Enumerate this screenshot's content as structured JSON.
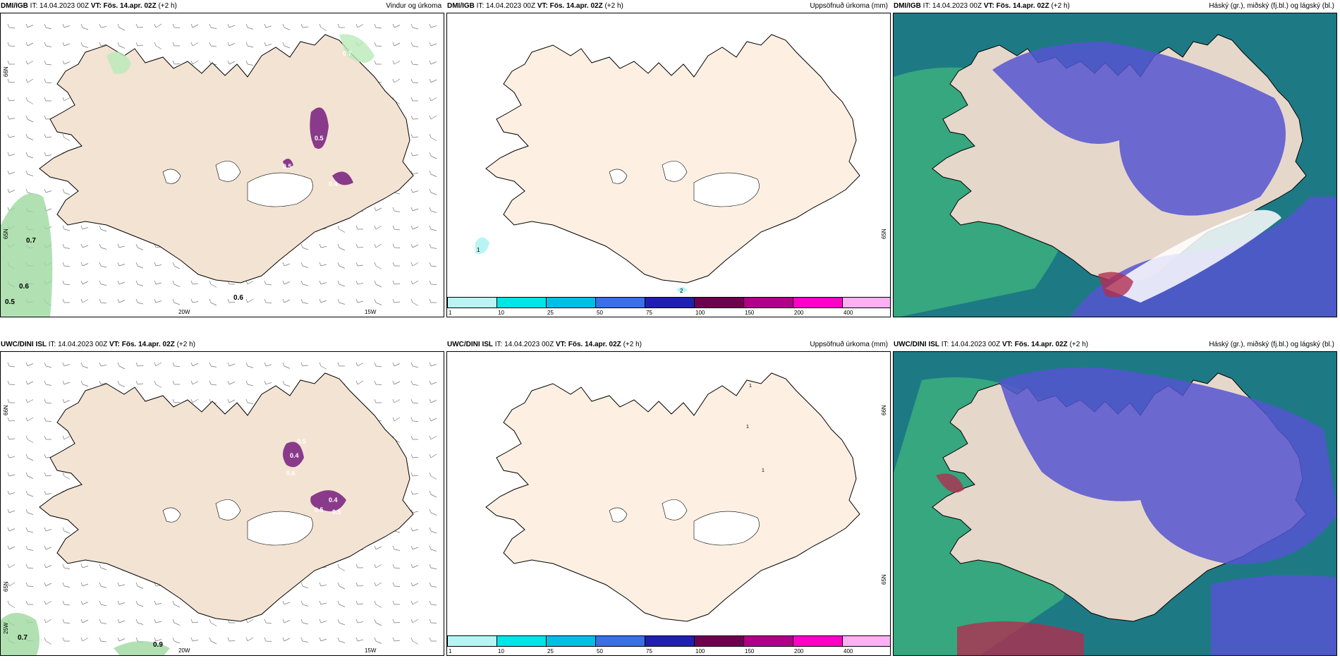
{
  "panels": [
    {
      "model": "DMI/IGB",
      "it_label": "IT:",
      "it": "14.04.2023 00Z",
      "vt_label": "VT:",
      "vt": "Fös. 14.apr. 02Z",
      "lead": "(+2 h)",
      "title": "Vindur og úrkoma",
      "type": "wind"
    },
    {
      "model": "DMI/IGB",
      "it_label": "IT:",
      "it": "14.04.2023 00Z",
      "vt_label": "VT:",
      "vt": "Fös. 14.apr. 02Z",
      "lead": "(+2 h)",
      "title": "Uppsöfnuð úrkoma (mm)",
      "type": "accum"
    },
    {
      "model": "DMI/IGB",
      "it_label": "IT:",
      "it": "14.04.2023 00Z",
      "vt_label": "VT:",
      "vt": "Fös. 14.apr. 02Z",
      "lead": "(+2 h)",
      "title": "Háský (gr.), miðský (fj.bl.) og lágský (bl.)",
      "type": "cloud"
    },
    {
      "model": "UWC/DINI ISL",
      "it_label": "IT:",
      "it": "14.04.2023 00Z",
      "vt_label": "VT:",
      "vt": "Fös. 14.apr. 02Z",
      "lead": "(+2 h)",
      "title": "",
      "type": "wind"
    },
    {
      "model": "UWC/DINI ISL",
      "it_label": "IT:",
      "it": "14.04.2023 00Z",
      "vt_label": "VT:",
      "vt": "Fös. 14.apr. 02Z",
      "lead": "(+2 h)",
      "title": "Uppsöfnuð úrkoma (mm)",
      "type": "accum"
    },
    {
      "model": "UWC/DINI ISL",
      "it_label": "IT:",
      "it": "14.04.2023 00Z",
      "vt_label": "VT:",
      "vt": "Fös. 14.apr. 02Z",
      "lead": "(+2 h)",
      "title": "Háský (gr.), miðský (fj.bl.) og lágský (bl.)",
      "type": "cloud"
    }
  ],
  "wind_top": {
    "axis_labels": [
      "20W",
      "15W",
      "65N",
      "66N"
    ],
    "precip_labels": [
      "0.7",
      "0.6",
      "0.5",
      "0.6",
      "0.5",
      "0.4",
      "0.7",
      "0.5"
    ]
  },
  "wind_bottom": {
    "axis_labels": [
      "20W",
      "15W",
      "66N",
      "65N",
      "25W"
    ],
    "precip_labels": [
      "0.7",
      "0.9",
      "0.4",
      "0.5",
      "0.6",
      "0.4",
      "0.5",
      "0.5"
    ]
  },
  "accum_top": {
    "axis_label": "65N",
    "values": [
      "1",
      "2"
    ]
  },
  "accum_bottom": {
    "axis_labels": [
      "66N",
      "65N"
    ],
    "values": [
      "1",
      "1",
      "1"
    ]
  },
  "colorbar": {
    "ticks": [
      "1",
      "10",
      "25",
      "50",
      "75",
      "100",
      "150",
      "200",
      "400"
    ],
    "colors": [
      "#b8f4f4",
      "#00e5e5",
      "#00bfe6",
      "#3a6fe6",
      "#2020b0",
      "#6e0050",
      "#b0008a",
      "#ff00c8",
      "#ffb0f4"
    ]
  },
  "colors": {
    "land": "#f3e3d3",
    "accum_land": "#fdf0e2",
    "ocean_cloud": "#1d7a85",
    "high_cloud": "#5555d0",
    "mid_cloud": "#3fb77e",
    "low_cloud": "#e6d7cb",
    "precip": "#8a3a8a"
  }
}
